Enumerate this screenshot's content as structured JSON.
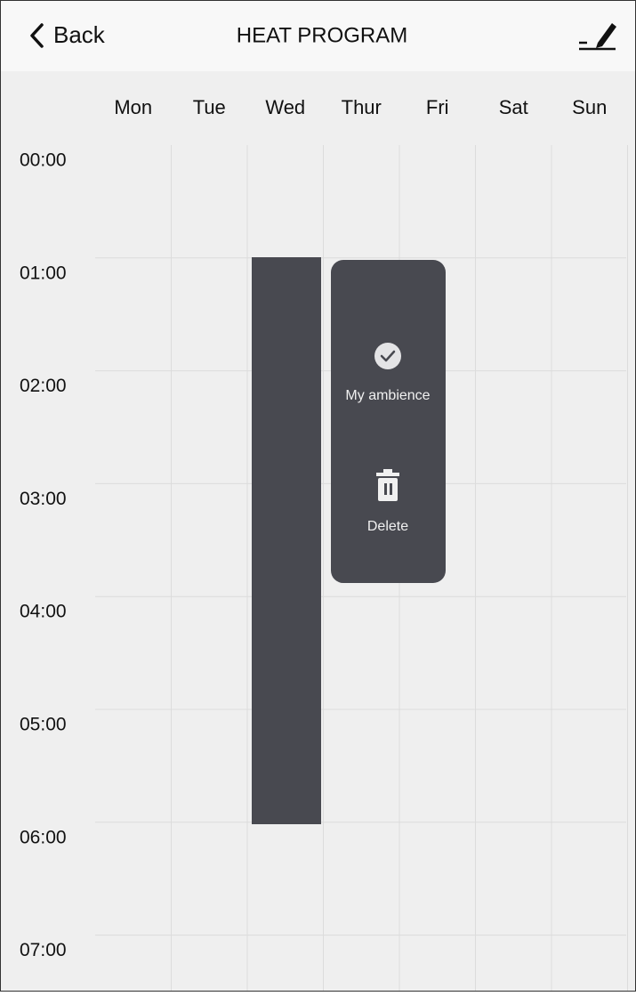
{
  "header": {
    "back": "Back",
    "title": "HEAT PROGRAM"
  },
  "days": [
    "Mon",
    "Tue",
    "Wed",
    "Thur",
    "Fri",
    "Sat",
    "Sun"
  ],
  "times": [
    "00:00",
    "01:00",
    "02:00",
    "03:00",
    "04:00",
    "05:00",
    "06:00",
    "07:00"
  ],
  "menu": {
    "items": [
      {
        "label": "My ambience"
      },
      {
        "label": "Delete"
      }
    ]
  }
}
